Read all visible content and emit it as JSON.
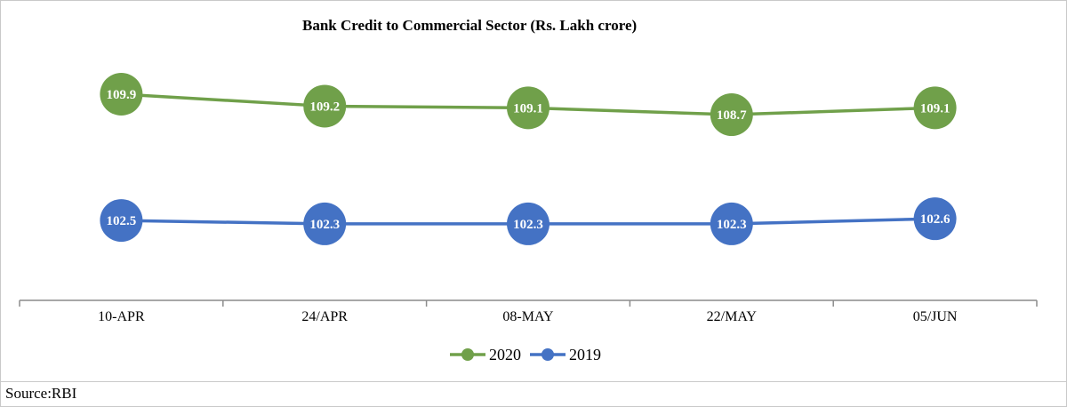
{
  "chart_data": {
    "type": "line",
    "title": "Bank Credit to Commercial Sector (Rs. Lakh crore)",
    "categories": [
      "10-APR",
      "24/APR",
      "08-MAY",
      "22/MAY",
      "05/JUN"
    ],
    "series": [
      {
        "name": "2020",
        "color": "#70a04a",
        "values": [
          109.9,
          109.2,
          109.1,
          108.7,
          109.1
        ]
      },
      {
        "name": "2019",
        "color": "#4472c4",
        "values": [
          102.5,
          102.3,
          102.3,
          102.3,
          102.6
        ]
      }
    ],
    "legend": "bottom-center",
    "grid": false,
    "data_labels": true
  },
  "source": "Source:RBI"
}
